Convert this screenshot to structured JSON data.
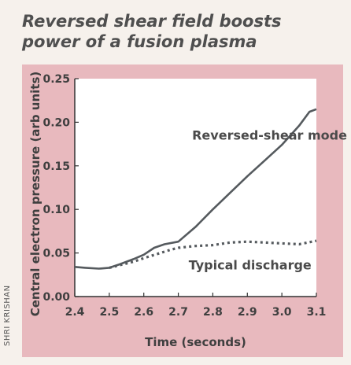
{
  "credit": "SHRI KRISHAN",
  "chart_data": {
    "type": "line",
    "title": "Reversed shear field boosts power of a fusion plasma",
    "xlabel": "Time (seconds)",
    "ylabel": "Central electron pressure (arb units)",
    "xlim": [
      2.4,
      3.1
    ],
    "ylim": [
      0,
      0.25
    ],
    "x_ticks": [
      2.4,
      2.5,
      2.6,
      2.7,
      2.8,
      2.9,
      3.0,
      3.1
    ],
    "x_tick_labels": [
      "2.4",
      "2.5",
      "2.6",
      "2.7",
      "2.8",
      "2.9",
      "3.0",
      "3.1"
    ],
    "y_ticks": [
      0,
      0.05,
      0.1,
      0.15,
      0.2,
      0.25
    ],
    "y_tick_labels": [
      "0.00",
      "0.05",
      "0.10",
      "0.15",
      "0.20",
      "0.25"
    ],
    "grid": false,
    "series": [
      {
        "name": "Reversed-shear mode",
        "style": "solid",
        "color": "#555a5e",
        "x": [
          2.4,
          2.43,
          2.47,
          2.5,
          2.53,
          2.57,
          2.6,
          2.63,
          2.66,
          2.7,
          2.75,
          2.8,
          2.85,
          2.9,
          2.95,
          3.0,
          3.05,
          3.08,
          3.1
        ],
        "y": [
          0.034,
          0.033,
          0.032,
          0.033,
          0.037,
          0.043,
          0.048,
          0.056,
          0.06,
          0.063,
          0.08,
          0.1,
          0.119,
          0.138,
          0.156,
          0.174,
          0.196,
          0.212,
          0.215
        ]
      },
      {
        "name": "Typical discharge",
        "style": "dotted",
        "color": "#555a5e",
        "x": [
          2.5,
          2.53,
          2.57,
          2.6,
          2.64,
          2.68,
          2.7,
          2.75,
          2.8,
          2.85,
          2.9,
          2.95,
          3.0,
          3.05,
          3.1
        ],
        "y": [
          0.033,
          0.036,
          0.04,
          0.044,
          0.049,
          0.054,
          0.056,
          0.058,
          0.059,
          0.062,
          0.063,
          0.062,
          0.061,
          0.06,
          0.064
        ]
      }
    ],
    "annotations": [
      {
        "text": "Reversed-shear mode",
        "x": 2.74,
        "y": 0.18
      },
      {
        "text": "Typical discharge",
        "x": 2.73,
        "y": 0.031
      }
    ],
    "colors": {
      "panel": "#e8b9be",
      "plot": "#ffffff",
      "line": "#555a5e"
    }
  }
}
